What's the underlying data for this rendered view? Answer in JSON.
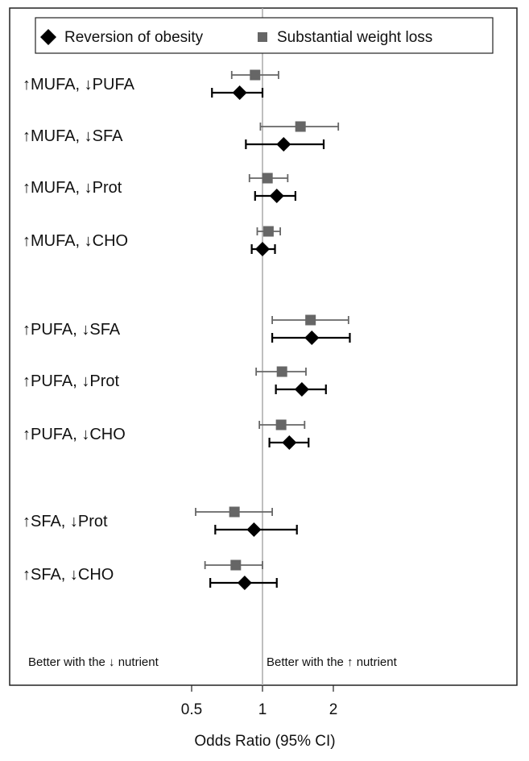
{
  "chart_data": {
    "type": "forest",
    "xlabel": "Odds Ratio (95% CI)",
    "x_scale": "log",
    "x_ticks": [
      0.5,
      1,
      2
    ],
    "x_tick_labels": [
      "0.5",
      "1",
      "2"
    ],
    "reference_line": 1,
    "annotations": {
      "left": "Better with the ↓ nutrient",
      "right": "Better with the ↑ nutrient"
    },
    "legend": {
      "placement": "top",
      "entries": [
        {
          "label": "Reversion of obesity",
          "marker": "diamond",
          "color": "#000000"
        },
        {
          "label": "Substantial weight loss",
          "marker": "square",
          "color": "#666666"
        }
      ]
    },
    "series": [
      {
        "name": "Reversion of obesity",
        "color": "#000000",
        "points": [
          {
            "row": 0,
            "or": 0.8,
            "lo": 0.61,
            "hi": 1.0
          },
          {
            "row": 1,
            "or": 1.23,
            "lo": 0.85,
            "hi": 1.82
          },
          {
            "row": 2,
            "or": 1.15,
            "lo": 0.93,
            "hi": 1.38
          },
          {
            "row": 3,
            "or": 1.0,
            "lo": 0.9,
            "hi": 1.13
          },
          {
            "row": 4,
            "or": 1.62,
            "lo": 1.1,
            "hi": 2.35
          },
          {
            "row": 5,
            "or": 1.47,
            "lo": 1.14,
            "hi": 1.86
          },
          {
            "row": 6,
            "or": 1.3,
            "lo": 1.07,
            "hi": 1.57
          },
          {
            "row": 7,
            "or": 0.92,
            "lo": 0.63,
            "hi": 1.4
          },
          {
            "row": 8,
            "or": 0.84,
            "lo": 0.6,
            "hi": 1.15
          }
        ]
      },
      {
        "name": "Substantial weight loss",
        "color": "#666666",
        "points": [
          {
            "row": 0,
            "or": 0.93,
            "lo": 0.74,
            "hi": 1.17
          },
          {
            "row": 1,
            "or": 1.45,
            "lo": 0.98,
            "hi": 2.1
          },
          {
            "row": 2,
            "or": 1.05,
            "lo": 0.88,
            "hi": 1.28
          },
          {
            "row": 3,
            "or": 1.06,
            "lo": 0.95,
            "hi": 1.19
          },
          {
            "row": 4,
            "or": 1.6,
            "lo": 1.1,
            "hi": 2.32
          },
          {
            "row": 5,
            "or": 1.21,
            "lo": 0.94,
            "hi": 1.53
          },
          {
            "row": 6,
            "or": 1.2,
            "lo": 0.97,
            "hi": 1.51
          },
          {
            "row": 7,
            "or": 0.76,
            "lo": 0.52,
            "hi": 1.1
          },
          {
            "row": 8,
            "or": 0.77,
            "lo": 0.57,
            "hi": 1.0
          }
        ]
      }
    ],
    "rows": [
      "↑MUFA, ↓PUFA",
      "↑MUFA, ↓SFA",
      "↑MUFA, ↓Prot",
      "↑MUFA, ↓CHO",
      "↑PUFA, ↓SFA",
      "↑PUFA, ↓Prot",
      "↑PUFA, ↓CHO",
      "↑SFA, ↓Prot",
      "↑SFA, ↓CHO"
    ]
  }
}
